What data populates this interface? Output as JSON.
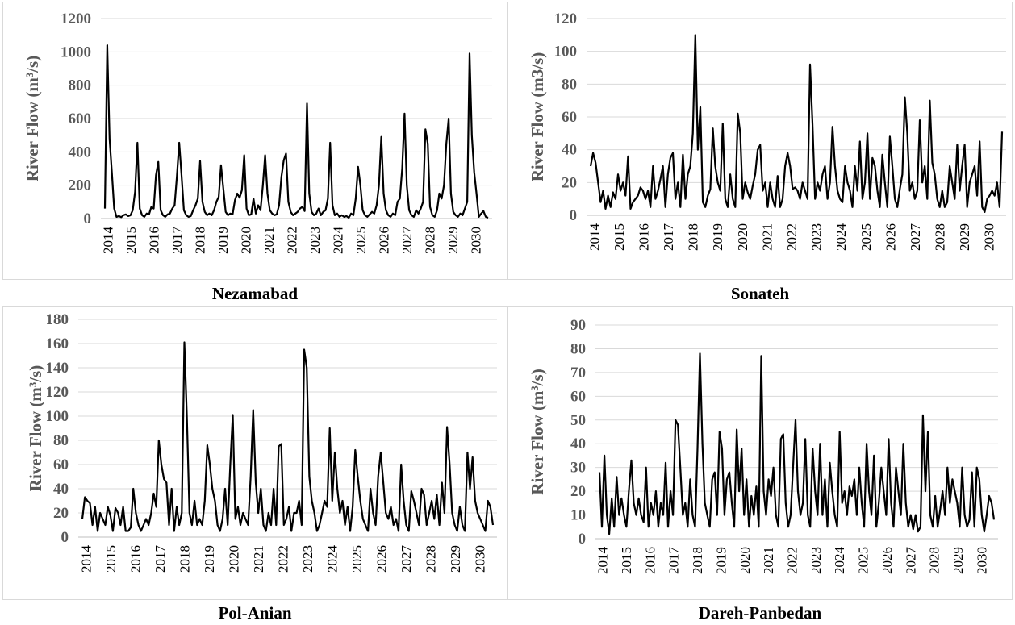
{
  "chart_data": [
    {
      "type": "line",
      "title": "Nezamabad",
      "xlabel": "",
      "ylabel": "River Flow (m³/s)",
      "ylim": [
        0,
        1200
      ],
      "yticks": [
        0,
        200,
        400,
        600,
        800,
        1000,
        1200
      ],
      "x_tick_labels": [
        "2014",
        "2015",
        "2016",
        "2017",
        "2018",
        "2019",
        "2020",
        "2021",
        "2022",
        "2023",
        "2024",
        "2025",
        "2026",
        "2027",
        "2028",
        "2029",
        "2030"
      ],
      "grid": true,
      "series": [
        {
          "values": [
            60,
            1040,
            480,
            280,
            60,
            10,
            15,
            8,
            20,
            25,
            15,
            20,
            50,
            160,
            455,
            60,
            20,
            10,
            30,
            25,
            70,
            60,
            260,
            340,
            50,
            20,
            10,
            25,
            30,
            60,
            80,
            250,
            455,
            260,
            50,
            20,
            10,
            15,
            50,
            80,
            120,
            345,
            100,
            40,
            20,
            30,
            20,
            50,
            100,
            130,
            320,
            180,
            40,
            20,
            30,
            25,
            110,
            150,
            125,
            170,
            380,
            60,
            20,
            25,
            120,
            30,
            80,
            50,
            200,
            380,
            150,
            50,
            30,
            20,
            25,
            80,
            250,
            350,
            390,
            100,
            40,
            20,
            30,
            40,
            60,
            70,
            45,
            690,
            150,
            40,
            20,
            30,
            60,
            20,
            40,
            50,
            120,
            455,
            80,
            20,
            30,
            10,
            20,
            10,
            15,
            5,
            30,
            20,
            120,
            310,
            200,
            50,
            20,
            10,
            25,
            40,
            30,
            80,
            200,
            490,
            150,
            50,
            20,
            10,
            30,
            20,
            100,
            120,
            300,
            630,
            200,
            50,
            20,
            10,
            50,
            30,
            60,
            100,
            535,
            450,
            70,
            20,
            10,
            50,
            150,
            120,
            200,
            450,
            600,
            150,
            40,
            20,
            10,
            30,
            20,
            60,
            100,
            990,
            500,
            280,
            150,
            10,
            30,
            45,
            10,
            5
          ]
        }
      ]
    },
    {
      "type": "line",
      "title": "Sonateh",
      "xlabel": "",
      "ylabel": "River Flow (m3/s)",
      "ylim": [
        0,
        120
      ],
      "yticks": [
        0,
        20,
        40,
        60,
        80,
        100,
        120
      ],
      "x_tick_labels": [
        "2014",
        "2015",
        "2016",
        "2017",
        "2018",
        "2019",
        "2020",
        "2021",
        "2022",
        "2023",
        "2024",
        "2025",
        "2026",
        "2027",
        "2028",
        "2029",
        "2030"
      ],
      "grid": true,
      "series": [
        {
          "values": [
            30,
            38,
            32,
            20,
            8,
            15,
            4,
            12,
            5,
            14,
            10,
            25,
            15,
            20,
            12,
            36,
            4,
            8,
            10,
            12,
            17,
            15,
            10,
            15,
            5,
            30,
            10,
            15,
            22,
            30,
            5,
            25,
            35,
            38,
            10,
            20,
            5,
            37,
            10,
            25,
            30,
            50,
            110,
            40,
            66,
            8,
            5,
            12,
            16,
            53,
            30,
            20,
            15,
            56,
            10,
            5,
            25,
            10,
            5,
            62,
            50,
            10,
            20,
            14,
            10,
            18,
            25,
            40,
            43,
            15,
            20,
            5,
            20,
            10,
            5,
            24,
            5,
            10,
            30,
            38,
            30,
            16,
            17,
            15,
            10,
            20,
            15,
            10,
            92,
            55,
            10,
            20,
            15,
            25,
            30,
            10,
            20,
            54,
            30,
            15,
            10,
            8,
            30,
            20,
            15,
            5,
            30,
            15,
            45,
            10,
            20,
            50,
            10,
            35,
            30,
            15,
            5,
            37,
            20,
            5,
            48,
            30,
            10,
            5,
            16,
            25,
            72,
            50,
            15,
            20,
            10,
            15,
            58,
            20,
            30,
            10,
            70,
            32,
            25,
            10,
            5,
            15,
            5,
            8,
            30,
            20,
            10,
            43,
            15,
            30,
            43,
            5,
            20,
            25,
            30,
            12,
            45,
            5,
            2,
            10,
            12,
            15,
            12,
            20,
            5,
            51
          ]
        }
      ]
    },
    {
      "type": "line",
      "title": "Pol-Anian",
      "xlabel": "",
      "ylabel": "River Flow (m³/s)",
      "ylim": [
        0,
        180
      ],
      "yticks": [
        0,
        20,
        40,
        60,
        80,
        100,
        120,
        140,
        160,
        180
      ],
      "x_tick_labels": [
        "2014",
        "2015",
        "2016",
        "2017",
        "2018",
        "2019",
        "2020",
        "2021",
        "2022",
        "2023",
        "2024",
        "2025",
        "2026",
        "2027",
        "2028",
        "2029",
        "2030"
      ],
      "grid": true,
      "series": [
        {
          "values": [
            15,
            33,
            30,
            28,
            10,
            25,
            5,
            20,
            15,
            10,
            25,
            18,
            5,
            24,
            20,
            10,
            25,
            5,
            5,
            8,
            40,
            20,
            10,
            5,
            10,
            15,
            10,
            20,
            36,
            25,
            80,
            60,
            48,
            45,
            10,
            40,
            5,
            25,
            10,
            20,
            161,
            100,
            20,
            10,
            30,
            10,
            15,
            10,
            30,
            76,
            60,
            40,
            30,
            10,
            5,
            15,
            40,
            10,
            60,
            101,
            15,
            25,
            10,
            20,
            15,
            10,
            50,
            105,
            45,
            20,
            40,
            10,
            5,
            20,
            10,
            40,
            10,
            75,
            77,
            10,
            15,
            25,
            5,
            20,
            20,
            30,
            10,
            155,
            140,
            50,
            30,
            20,
            5,
            10,
            20,
            30,
            25,
            90,
            30,
            70,
            40,
            20,
            30,
            10,
            25,
            5,
            25,
            72,
            50,
            30,
            15,
            10,
            5,
            40,
            20,
            10,
            50,
            70,
            45,
            20,
            15,
            25,
            10,
            15,
            5,
            60,
            30,
            10,
            5,
            38,
            30,
            20,
            10,
            40,
            35,
            10,
            20,
            30,
            15,
            35,
            10,
            45,
            20,
            91,
            60,
            20,
            10,
            5,
            25,
            10,
            5,
            70,
            40,
            66,
            30,
            20,
            15,
            10,
            5,
            30,
            25,
            10
          ]
        }
      ]
    },
    {
      "type": "line",
      "title": "Dareh-Panbedan",
      "xlabel": "",
      "ylabel": "River Flow (m³/s)",
      "ylim": [
        0,
        90
      ],
      "yticks": [
        0,
        10,
        20,
        30,
        40,
        50,
        60,
        70,
        80,
        90
      ],
      "x_tick_labels": [
        "2014",
        "2015",
        "2016",
        "2017",
        "2018",
        "2019",
        "2020",
        "2021",
        "2022",
        "2023",
        "2024",
        "2025",
        "2026",
        "2027",
        "2028",
        "2029",
        "2030"
      ],
      "grid": true,
      "series": [
        {
          "values": [
            28,
            5,
            35,
            10,
            2,
            17,
            5,
            26,
            10,
            17,
            10,
            5,
            20,
            33,
            15,
            10,
            17,
            10,
            7,
            30,
            5,
            15,
            10,
            20,
            5,
            15,
            10,
            32,
            5,
            20,
            10,
            50,
            48,
            30,
            10,
            15,
            5,
            25,
            10,
            5,
            38,
            78,
            40,
            15,
            10,
            5,
            25,
            28,
            10,
            45,
            38,
            10,
            25,
            28,
            15,
            5,
            46,
            20,
            38,
            10,
            25,
            5,
            18,
            10,
            22,
            5,
            77,
            20,
            10,
            25,
            18,
            30,
            10,
            5,
            42,
            44,
            15,
            5,
            10,
            30,
            50,
            20,
            10,
            15,
            42,
            10,
            5,
            38,
            20,
            10,
            40,
            10,
            25,
            5,
            32,
            20,
            10,
            5,
            45,
            15,
            20,
            10,
            22,
            18,
            25,
            10,
            30,
            15,
            5,
            40,
            20,
            10,
            35,
            5,
            15,
            30,
            20,
            10,
            42,
            15,
            5,
            30,
            20,
            10,
            40,
            15,
            5,
            10,
            4,
            10,
            3,
            5,
            52,
            20,
            45,
            10,
            5,
            18,
            5,
            12,
            20,
            10,
            30,
            15,
            25,
            20,
            15,
            5,
            30,
            10,
            5,
            8,
            28,
            5,
            30,
            25,
            10,
            3,
            10,
            18,
            15,
            8
          ]
        }
      ]
    }
  ],
  "captions": [
    "Nezamabad",
    "Sonateh",
    "Pol-Anian",
    "Dareh-Panbedan"
  ]
}
